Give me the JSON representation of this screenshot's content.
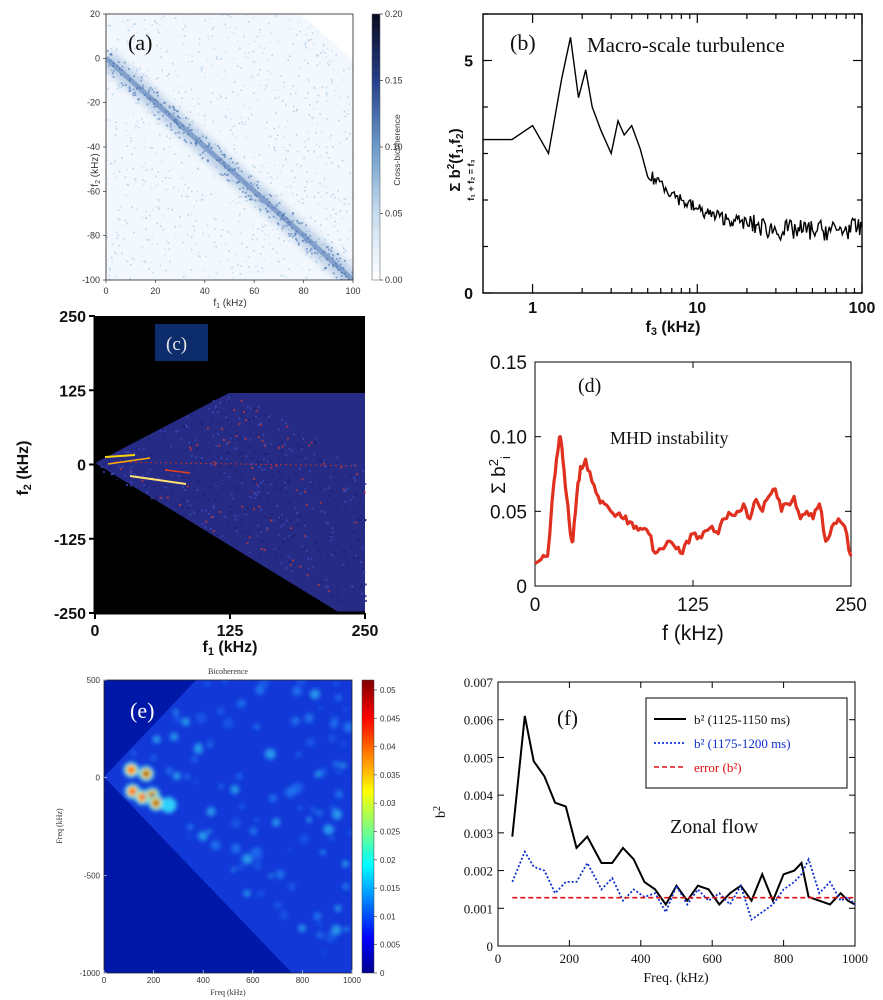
{
  "chart_data": [
    {
      "panel": "(a)",
      "type": "heatmap",
      "xlabel": "f1 (kHz)",
      "ylabel": "f2 (kHz)",
      "xlim": [
        0,
        100
      ],
      "ylim": [
        -100,
        20
      ],
      "xticks": [
        "0",
        "20",
        "40",
        "60",
        "80",
        "100"
      ],
      "yticks": [
        "20",
        "0",
        "-20",
        "-40",
        "-60",
        "-80",
        "-100"
      ],
      "colorbar": {
        "label": "Cross-bicoherence",
        "range": [
          0,
          0.2
        ],
        "ticks": [
          "0.20",
          "0.15",
          "0.10",
          "0.05",
          "0.00"
        ]
      },
      "feature": "diagonal band along f2 = -f1",
      "colors": {
        "low": "#f2f8fd",
        "high": "#0a0a1e"
      }
    },
    {
      "panel": "(b)",
      "type": "line",
      "annotation": "Macro-scale turbulence",
      "xlabel": "f3 (kHz)",
      "ylabel": "Σ b²(f1,f2) over f1 + f2 = f3",
      "xscale": "log",
      "xlim": [
        0.5,
        100
      ],
      "ylim": [
        0,
        6
      ],
      "xticks": [
        "1",
        "10",
        "100"
      ],
      "yticks": [
        "0",
        "5"
      ],
      "x": [
        0.5,
        0.75,
        1.0,
        1.25,
        1.5,
        1.7,
        1.9,
        2.1,
        2.3,
        2.6,
        3.0,
        3.3,
        3.6,
        4.0,
        4.5,
        5.0,
        6.0,
        7.0,
        8.0,
        10.0,
        13.0,
        17.0,
        20.0,
        30.0,
        50.0,
        70.0,
        100.0
      ],
      "y": [
        3.3,
        3.3,
        3.6,
        3.0,
        4.6,
        5.5,
        4.2,
        4.8,
        4.0,
        3.5,
        3.0,
        3.7,
        3.4,
        3.6,
        3.1,
        2.5,
        2.4,
        2.15,
        2.0,
        1.8,
        1.65,
        1.55,
        1.5,
        1.35,
        1.35,
        1.35,
        1.4
      ],
      "color": "#000000"
    },
    {
      "panel": "(c)",
      "type": "heatmap",
      "xlabel": "f1 (kHz)",
      "ylabel": "f2 (kHz)",
      "xlim": [
        0,
        250
      ],
      "ylim": [
        -250,
        250
      ],
      "xticks": [
        "0",
        "125",
        "250"
      ],
      "yticks": [
        "250",
        "125",
        "0",
        "-125",
        "-250"
      ],
      "feature": "bicoherence over triangular region with peaks near f1 = 10–40 kHz, f2 ≈ 0",
      "colors": {
        "background": "#000000",
        "base": "#2a2f8a",
        "peak": "#ffd400"
      }
    },
    {
      "panel": "(d)",
      "type": "line",
      "annotation": "MHD instability",
      "xlabel": "f (kHz)",
      "ylabel": "Σ b²i",
      "xlim": [
        0,
        250
      ],
      "ylim": [
        0,
        0.15
      ],
      "xticks": [
        "0",
        "125",
        "250"
      ],
      "yticks": [
        "0",
        "0.05",
        "0.10",
        "0.15"
      ],
      "x": [
        0,
        5,
        10,
        15,
        18,
        20,
        22,
        25,
        28,
        30,
        33,
        36,
        40,
        45,
        50,
        55,
        60,
        65,
        70,
        75,
        80,
        85,
        90,
        95,
        100,
        105,
        110,
        115,
        120,
        125,
        130,
        135,
        140,
        145,
        150,
        155,
        160,
        165,
        170,
        175,
        180,
        185,
        190,
        195,
        200,
        205,
        210,
        215,
        220,
        225,
        230,
        235,
        240,
        245,
        250
      ],
      "y": [
        0.015,
        0.018,
        0.02,
        0.07,
        0.09,
        0.1,
        0.085,
        0.06,
        0.035,
        0.03,
        0.06,
        0.08,
        0.085,
        0.07,
        0.06,
        0.055,
        0.05,
        0.048,
        0.045,
        0.043,
        0.04,
        0.038,
        0.035,
        0.022,
        0.025,
        0.03,
        0.027,
        0.022,
        0.03,
        0.035,
        0.033,
        0.037,
        0.04,
        0.035,
        0.045,
        0.048,
        0.05,
        0.055,
        0.045,
        0.058,
        0.05,
        0.06,
        0.065,
        0.05,
        0.055,
        0.06,
        0.045,
        0.05,
        0.045,
        0.055,
        0.03,
        0.04,
        0.045,
        0.04,
        0.02
      ],
      "color": "#e03020"
    },
    {
      "panel": "(e)",
      "type": "heatmap",
      "title": "Bicoherence",
      "xlabel": "Freq (kHz)",
      "ylabel": "Freq (kHz)",
      "xlim": [
        0,
        1000
      ],
      "ylim": [
        -1000,
        500
      ],
      "xticks": [
        "0",
        "200",
        "400",
        "600",
        "800",
        "1000"
      ],
      "yticks": [
        "500",
        "0",
        "-500",
        "-1000"
      ],
      "colorbar": {
        "range": [
          0,
          0.05
        ],
        "ticks": [
          "0.05",
          "0.045",
          "0.04",
          "0.035",
          "0.03",
          "0.025",
          "0.02",
          "0.015",
          "0.01",
          "0.005",
          "0"
        ]
      },
      "hotspots": [
        {
          "x": 110,
          "y": 40,
          "level": 0.045
        },
        {
          "x": 170,
          "y": 20,
          "level": 0.05
        },
        {
          "x": 115,
          "y": -70,
          "level": 0.045
        },
        {
          "x": 155,
          "y": -100,
          "level": 0.04
        },
        {
          "x": 195,
          "y": -90,
          "level": 0.05
        },
        {
          "x": 210,
          "y": -130,
          "level": 0.048
        },
        {
          "x": 260,
          "y": -140,
          "level": 0.02
        }
      ],
      "colors": {
        "background": "#0018a8",
        "base": "#1040e0"
      }
    },
    {
      "panel": "(f)",
      "type": "line",
      "annotation": "Zonal flow",
      "xlabel": "Freq. (kHz)",
      "ylabel": "b²",
      "xlim": [
        0,
        1000
      ],
      "ylim": [
        0,
        0.007
      ],
      "xticks": [
        "0",
        "200",
        "400",
        "600",
        "800",
        "1000"
      ],
      "yticks": [
        "0",
        "0.001",
        "0.002",
        "0.003",
        "0.004",
        "0.005",
        "0.006",
        "0.007"
      ],
      "legend_position": "top-right",
      "series": [
        {
          "name": "b² (1125-1150 ms)",
          "style": "solid",
          "color": "#000000",
          "x": [
            40,
            75,
            100,
            130,
            160,
            190,
            220,
            250,
            290,
            320,
            350,
            380,
            410,
            440,
            470,
            500,
            530,
            560,
            590,
            620,
            650,
            680,
            710,
            740,
            770,
            800,
            830,
            850,
            870,
            900,
            930,
            960,
            980,
            1000
          ],
          "y": [
            0.0029,
            0.0061,
            0.0049,
            0.0045,
            0.0038,
            0.0037,
            0.0026,
            0.0029,
            0.0022,
            0.0022,
            0.0026,
            0.0023,
            0.0017,
            0.0015,
            0.0011,
            0.0016,
            0.0012,
            0.0016,
            0.0015,
            0.0011,
            0.0014,
            0.0016,
            0.0012,
            0.0019,
            0.0012,
            0.0019,
            0.002,
            0.0022,
            0.0013,
            0.0012,
            0.0011,
            0.0014,
            0.0012,
            0.0011
          ]
        },
        {
          "name": "b² (1175-1200 ms)",
          "style": "dotted",
          "color": "#1030d0",
          "x": [
            40,
            75,
            100,
            130,
            160,
            190,
            220,
            250,
            290,
            320,
            350,
            380,
            410,
            440,
            470,
            500,
            530,
            560,
            590,
            620,
            650,
            680,
            710,
            740,
            770,
            800,
            830,
            850,
            870,
            900,
            930,
            960,
            980,
            1000
          ],
          "y": [
            0.0017,
            0.0025,
            0.0021,
            0.002,
            0.0014,
            0.0017,
            0.0017,
            0.0022,
            0.0015,
            0.0018,
            0.0012,
            0.0015,
            0.0013,
            0.0014,
            0.0009,
            0.0016,
            0.0011,
            0.0015,
            0.0012,
            0.0014,
            0.0011,
            0.0016,
            0.0007,
            0.0009,
            0.0011,
            0.0015,
            0.0017,
            0.0019,
            0.0023,
            0.0014,
            0.0017,
            0.0012,
            0.0013,
            0.0011
          ]
        },
        {
          "name": "error (b²)",
          "style": "dashed",
          "color": "#e01010",
          "x": [
            40,
            1000
          ],
          "y": [
            0.00128,
            0.00128
          ]
        }
      ]
    }
  ]
}
